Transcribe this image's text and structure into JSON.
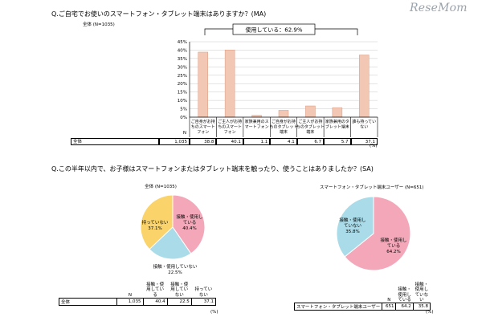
{
  "logo": "ReseMom",
  "q1": {
    "title": "Q.ご自宅でお使いのスマートフォン・タブレット端末はありますか？(MA)",
    "sample": "全体 (N=1035)",
    "callout": "使用している：62.9%",
    "table_row_label": "全体",
    "n_header": "N",
    "n_value": "1,035",
    "pct_unit": "(%)"
  },
  "q2": {
    "title": "Q.この半年以内で、お子様はスマートフォンまたはタブレット端末を触ったり、使うことはありましたか？(SA)",
    "pie1_title": "全体 (N=1035)",
    "pie2_title": "スマートフォン・タブレット端末ユーザー (N=651)",
    "pct_unit": "(%)",
    "n_header": "N",
    "col_headers": [
      "接触・使用している",
      "接触・使用していない",
      "持っていない"
    ],
    "table1": {
      "label": "全体",
      "n": "1,035",
      "values": [
        "40.4",
        "22.5",
        "37.1"
      ]
    },
    "table2": {
      "label": "スマートフォン・タブレット端末ユーザー",
      "n": "651",
      "values": [
        "64.2",
        "35.8"
      ]
    }
  },
  "chart_data": [
    {
      "type": "bar",
      "title": "Q.ご自宅でお使いのスマートフォン・タブレット端末はありますか？(MA)",
      "categories": [
        "ご自身がお持ちのスマートフォン",
        "ご主人がお持ちのスマートフォン",
        "家族兼用のスマートフォン",
        "ご自身がお持ちのタブレット端末",
        "ご主人がお持ちのタブレット端末",
        "家族兼用のタブレット端末",
        "誰も持っていない"
      ],
      "category_lines": [
        [
          "ご自身がお持",
          "ちのスマート",
          "フォン"
        ],
        [
          "ご主人がお持",
          "ちのスマート",
          "フォン"
        ],
        [
          "家族兼用のス",
          "マートフォン"
        ],
        [
          "ご自身がお持",
          "ちのタブレット",
          "端末"
        ],
        [
          "ご主人がお持",
          "ちのタブレット",
          "端末"
        ],
        [
          "家族兼用のタ",
          "ブレット端末"
        ],
        [
          "誰も持ってい",
          "ない"
        ]
      ],
      "values": [
        38.8,
        40.1,
        1.1,
        4.1,
        6.7,
        5.7,
        37.1
      ],
      "value_labels": [
        "38.8",
        "40.1",
        "1.1",
        "4.1",
        "6.7",
        "5.7",
        "37.1"
      ],
      "ylim": [
        0,
        45
      ],
      "yticks": [
        0,
        5,
        10,
        15,
        20,
        25,
        30,
        35,
        40,
        45
      ],
      "ytick_labels": [
        "0%",
        "5%",
        "10%",
        "15%",
        "20%",
        "25%",
        "30%",
        "35%",
        "40%",
        "45%"
      ],
      "grid": true,
      "bar_color": "#f2c7b4",
      "bar_stroke": "#d89a80"
    },
    {
      "type": "pie",
      "title": "全体 (N=1035)",
      "slices": [
        {
          "label": "接触・使用している",
          "lines": [
            "接触・使用し",
            "ている",
            "40.4%"
          ],
          "value": 40.4,
          "color": "#f4a7b9"
        },
        {
          "label": "接触・使用していない",
          "lines": [
            "接触・使用していない",
            "22.5%"
          ],
          "value": 22.5,
          "color": "#a9dbe8"
        },
        {
          "label": "持っていない",
          "lines": [
            "持っていない",
            "37.1%"
          ],
          "value": 37.1,
          "color": "#fad36a"
        }
      ]
    },
    {
      "type": "pie",
      "title": "スマートフォン・タブレット端末ユーザー (N=651)",
      "slices": [
        {
          "label": "接触・使用している",
          "lines": [
            "接触・使用し",
            "ている",
            "64.2%"
          ],
          "value": 64.2,
          "color": "#f4a7b9"
        },
        {
          "label": "接触・使用していない",
          "lines": [
            "接触・使用し",
            "ていない",
            "35.8%"
          ],
          "value": 35.8,
          "color": "#a9dbe8"
        }
      ]
    }
  ]
}
